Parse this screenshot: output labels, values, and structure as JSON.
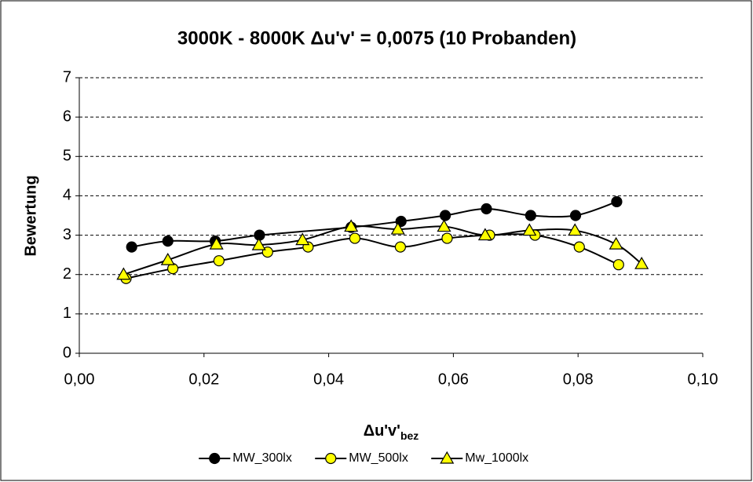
{
  "chart_data": {
    "type": "line",
    "title": "3000K - 8000K Δu'v' = 0,0075 (10 Probanden)",
    "x_label": {
      "main": "Δu'v'",
      "sub": "bez"
    },
    "y_label": "Bewertung",
    "xlim": [
      0,
      0.1
    ],
    "ylim": [
      0,
      7
    ],
    "xticks": [
      {
        "value": 0,
        "label": "0,00"
      },
      {
        "value": 0.02,
        "label": "0,02"
      },
      {
        "value": 0.04,
        "label": "0,04"
      },
      {
        "value": 0.06,
        "label": "0,06"
      },
      {
        "value": 0.08,
        "label": "0,08"
      },
      {
        "value": 0.1,
        "label": "0,10"
      }
    ],
    "yticks": [
      0,
      1,
      2,
      3,
      4,
      5,
      6,
      7
    ],
    "grid": true,
    "smooth": true,
    "legend": "bottom",
    "series": [
      {
        "name": "MW_300lx",
        "color": "#000000",
        "marker": "circle",
        "x": [
          0.0084,
          0.0142,
          0.0218,
          0.0289,
          0.0436,
          0.0516,
          0.0587,
          0.0653,
          0.0724,
          0.0796,
          0.0862
        ],
        "values": [
          2.7,
          2.85,
          2.85,
          3.0,
          3.2,
          3.35,
          3.5,
          3.67,
          3.5,
          3.5,
          3.85
        ]
      },
      {
        "name": "MW_500lx",
        "color": "#ffff00",
        "marker": "circle",
        "x": [
          0.0075,
          0.015,
          0.0224,
          0.0302,
          0.0367,
          0.0442,
          0.0515,
          0.059,
          0.0658,
          0.0731,
          0.0802,
          0.0865
        ],
        "values": [
          1.9,
          2.15,
          2.35,
          2.57,
          2.7,
          2.92,
          2.7,
          2.92,
          3.0,
          3.0,
          2.7,
          2.25
        ]
      },
      {
        "name": "Mw_1000lx",
        "color": "#ffff00",
        "marker": "triangle",
        "x": [
          0.0071,
          0.0142,
          0.022,
          0.0288,
          0.0358,
          0.0436,
          0.0511,
          0.0585,
          0.0651,
          0.0722,
          0.0795,
          0.0861,
          0.0902
        ],
        "values": [
          2.0,
          2.37,
          2.77,
          2.75,
          2.88,
          3.22,
          3.15,
          3.22,
          3.0,
          3.12,
          3.12,
          2.77,
          2.27
        ]
      }
    ]
  }
}
